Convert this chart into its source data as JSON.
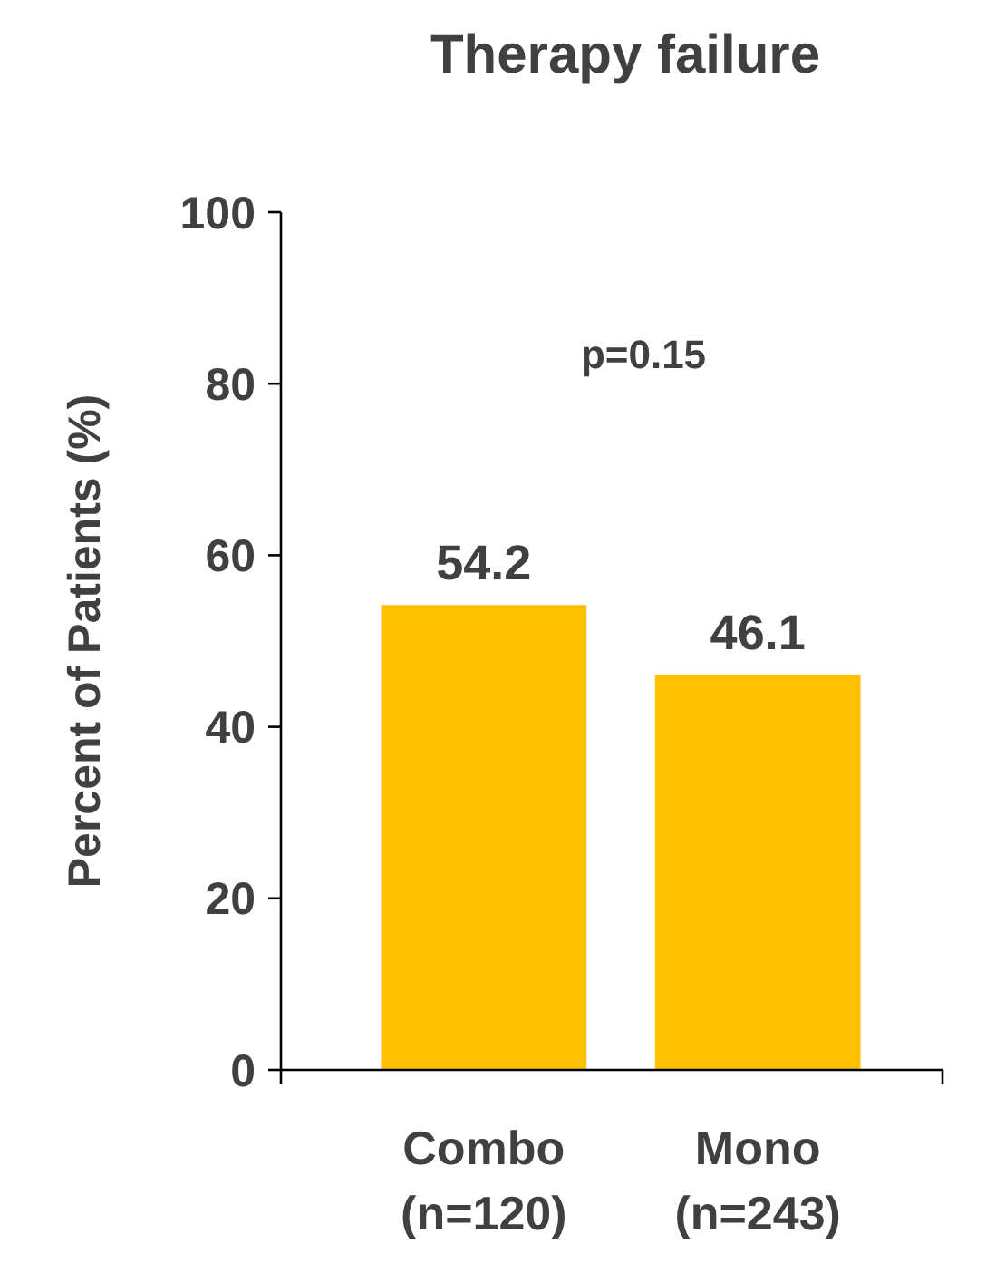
{
  "chart_data": {
    "type": "bar",
    "title": "Therapy failure",
    "ylabel": "Percent of Patients (%)",
    "categories": [
      "Combo\n(n=120)",
      "Mono\n(n=243)"
    ],
    "values": [
      54.2,
      46.1
    ],
    "colors": [
      "#ffc000",
      "#ffc000"
    ],
    "ylim": [
      0,
      100
    ],
    "yticks": [
      0,
      20,
      40,
      60,
      80,
      100
    ],
    "grid": false,
    "data_labels": true,
    "annotations": [
      "p=0.15"
    ]
  }
}
